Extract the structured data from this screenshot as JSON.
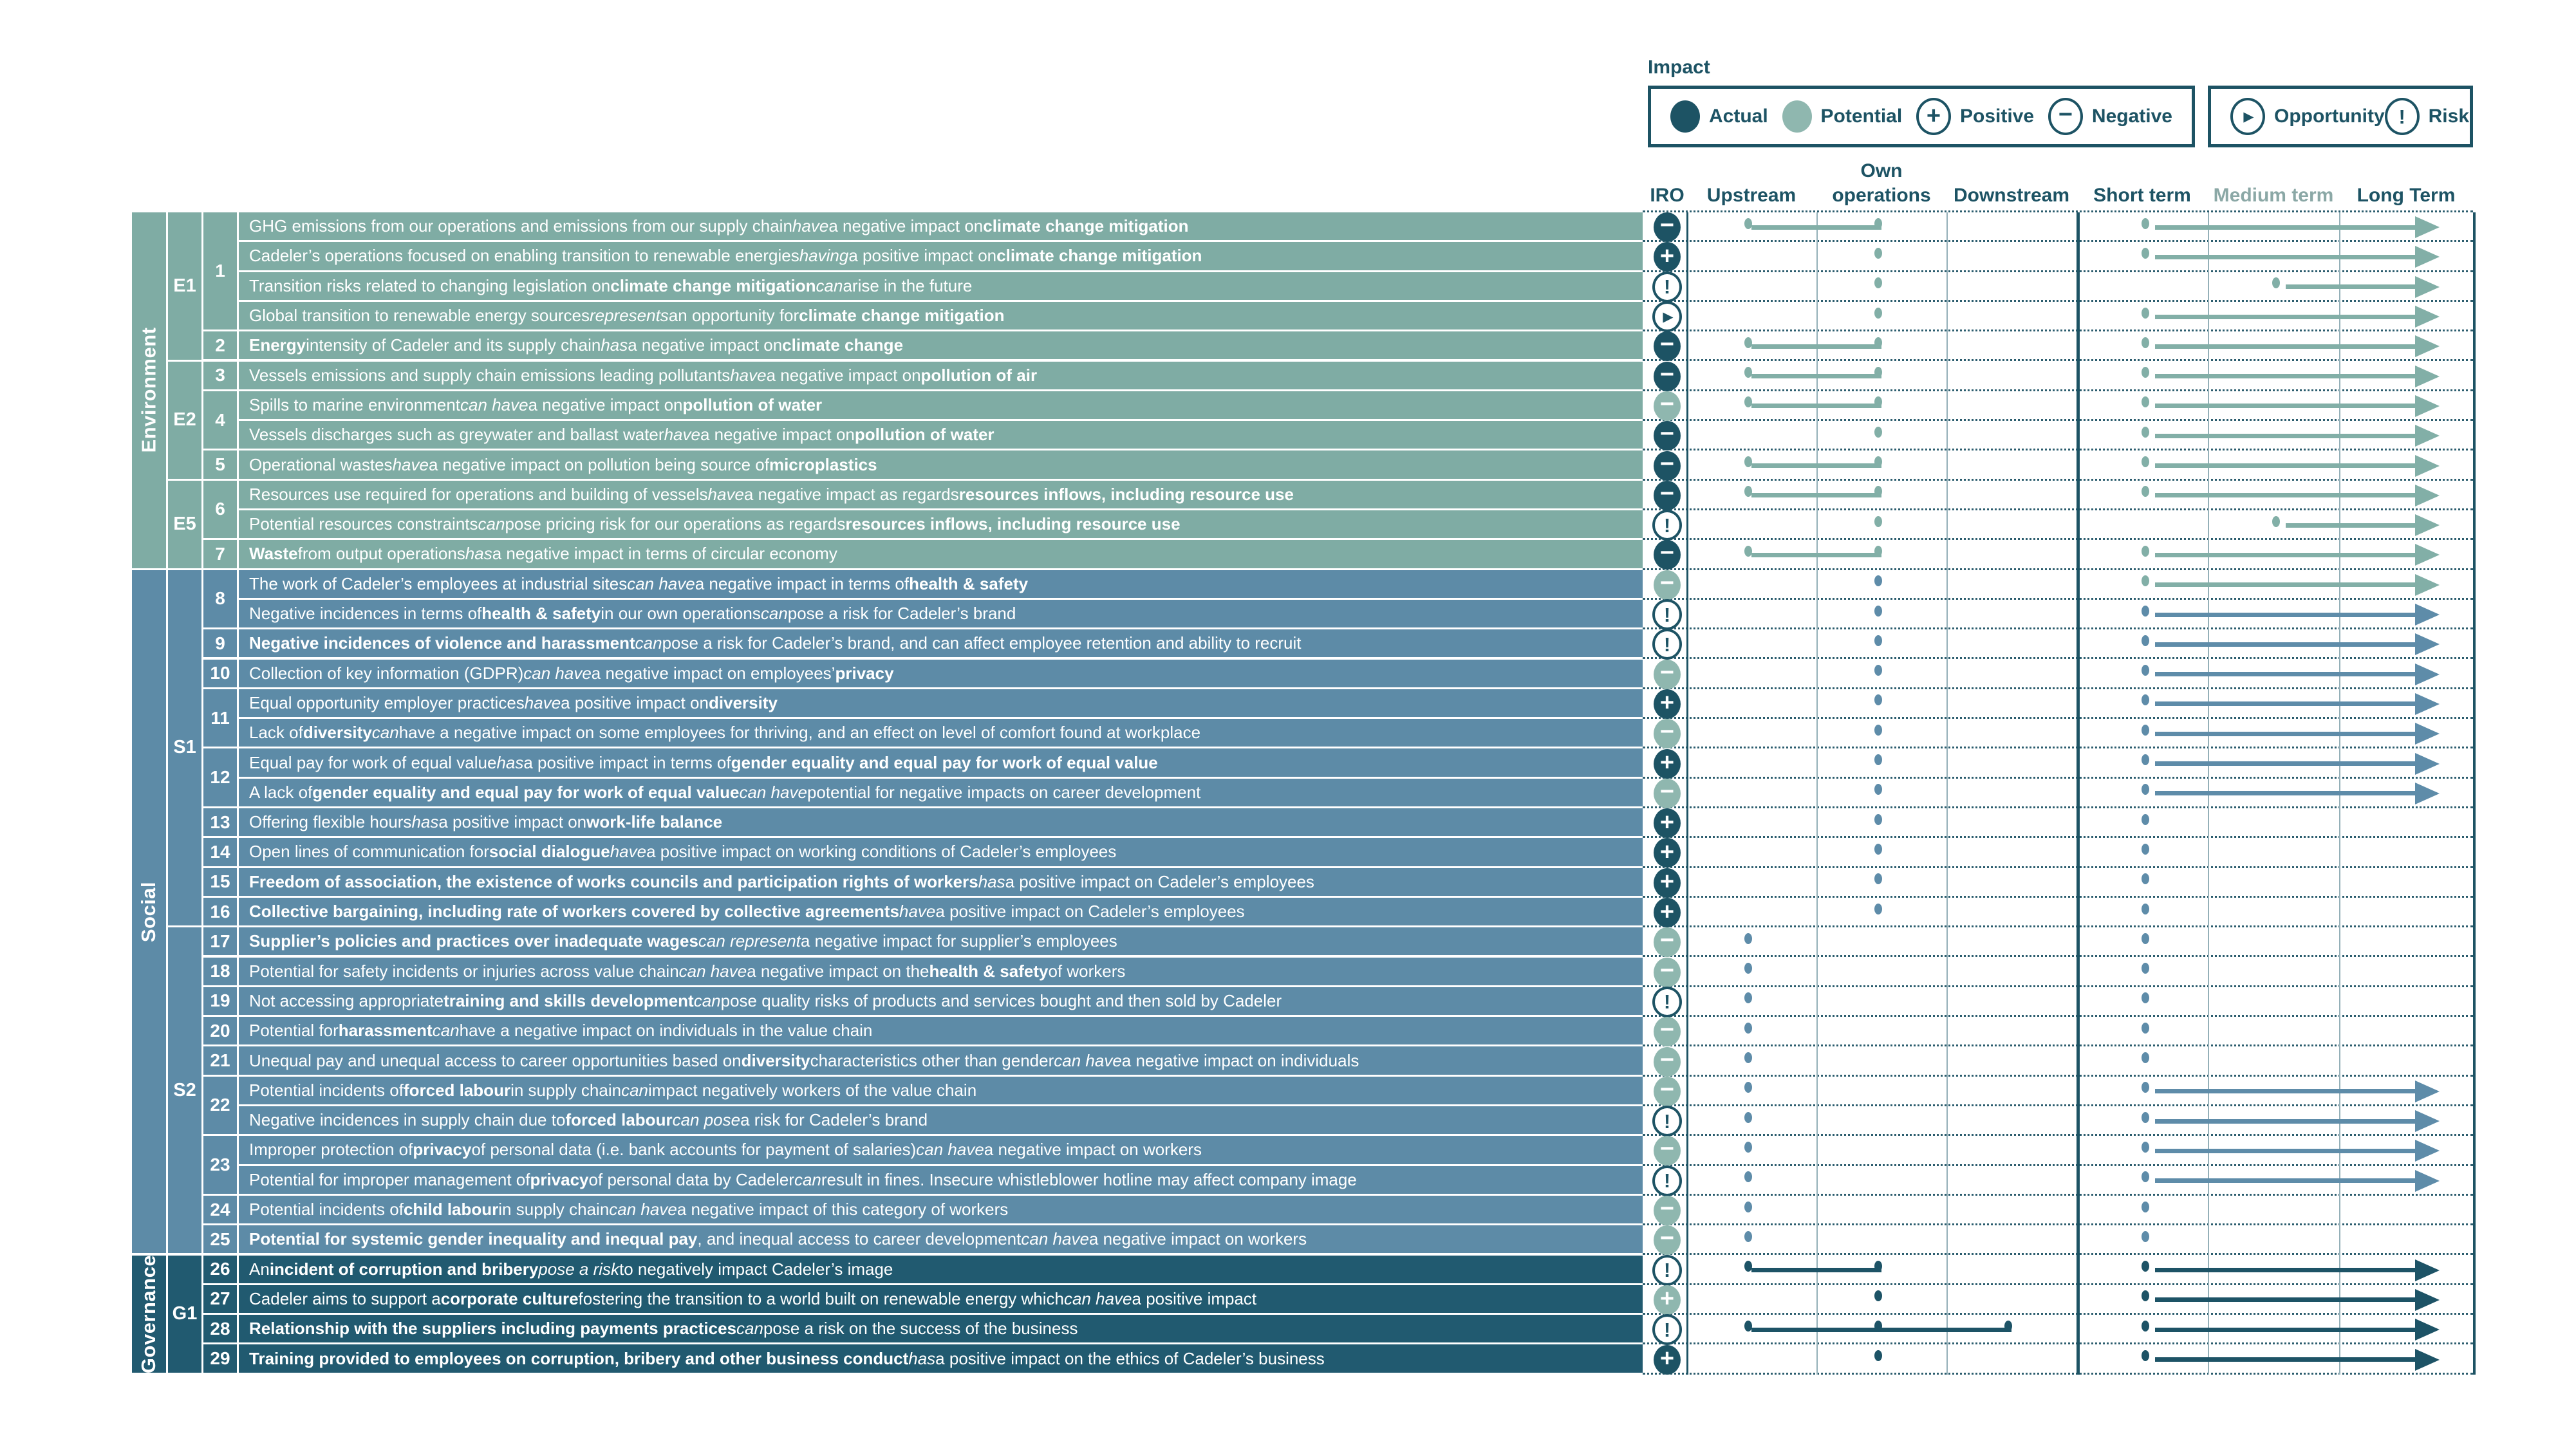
{
  "legend": {
    "title": "Impact",
    "groups": [
      [
        {
          "id": "actual",
          "label": "Actual",
          "icon": "dot-dark"
        },
        {
          "id": "potential",
          "label": "Potential",
          "icon": "dot-light"
        },
        {
          "id": "positive",
          "label": "Positive",
          "icon": "plus-outline"
        },
        {
          "id": "negative",
          "label": "Negative",
          "icon": "minus-outline"
        }
      ],
      [
        {
          "id": "opportunity",
          "label": "Opportunity",
          "icon": "play-outline"
        },
        {
          "id": "risk",
          "label": "Risk",
          "icon": "bang-outline"
        }
      ]
    ]
  },
  "columns": [
    {
      "id": "iro",
      "label": "IRO",
      "muted": false
    },
    {
      "id": "upstream",
      "label": "Upstream",
      "muted": false
    },
    {
      "id": "own",
      "label": "Own operations",
      "muted": false
    },
    {
      "id": "downstream",
      "label": "Downstream",
      "muted": false
    },
    {
      "id": "short",
      "label": "Short term",
      "muted": false
    },
    {
      "id": "medium",
      "label": "Medium term",
      "muted": true
    },
    {
      "id": "long",
      "label": "Long Term",
      "muted": false
    }
  ],
  "palette": {
    "env": {
      "bg": "#7faca4",
      "el": "#82afa7"
    },
    "soc": {
      "bg": "#5d8ba7",
      "el": "#5e8ca9"
    },
    "gov": {
      "bg": "#215a70",
      "el": "#1d5366"
    },
    "dark": "#1d5364",
    "light": "#8fb7af",
    "dotted": "#2c5d6e",
    "thin": "#94b0b8",
    "headerMuted": "#8ba8a6"
  },
  "sections": [
    {
      "id": "environment",
      "label": "Environment",
      "theme": "env",
      "rows": [
        1,
        12
      ]
    },
    {
      "id": "social",
      "label": "Social",
      "theme": "soc",
      "rows": [
        13,
        35
      ]
    },
    {
      "id": "governance",
      "label": "Governance",
      "theme": "gov",
      "rows": [
        36,
        39
      ]
    }
  ],
  "topics": [
    {
      "label": "E1",
      "rows": [
        1,
        5
      ]
    },
    {
      "label": "E2",
      "rows": [
        6,
        9
      ]
    },
    {
      "label": "E5",
      "rows": [
        10,
        12
      ]
    },
    {
      "label": "S1",
      "rows": [
        13,
        24
      ]
    },
    {
      "label": "S2",
      "rows": [
        25,
        35
      ]
    },
    {
      "label": "G1",
      "rows": [
        36,
        39
      ]
    }
  ],
  "numbers": [
    {
      "label": "1",
      "rows": [
        1,
        4
      ]
    },
    {
      "label": "2",
      "rows": [
        5,
        5
      ]
    },
    {
      "label": "3",
      "rows": [
        6,
        6
      ]
    },
    {
      "label": "4",
      "rows": [
        7,
        8
      ]
    },
    {
      "label": "5",
      "rows": [
        9,
        9
      ]
    },
    {
      "label": "6",
      "rows": [
        10,
        11
      ]
    },
    {
      "label": "7",
      "rows": [
        12,
        12
      ]
    },
    {
      "label": "8",
      "rows": [
        13,
        14
      ]
    },
    {
      "label": "9",
      "rows": [
        15,
        15
      ]
    },
    {
      "label": "10",
      "rows": [
        16,
        16
      ]
    },
    {
      "label": "11",
      "rows": [
        17,
        18
      ]
    },
    {
      "label": "12",
      "rows": [
        19,
        20
      ]
    },
    {
      "label": "13",
      "rows": [
        21,
        21
      ]
    },
    {
      "label": "14",
      "rows": [
        22,
        22
      ]
    },
    {
      "label": "15",
      "rows": [
        23,
        23
      ]
    },
    {
      "label": "16",
      "rows": [
        24,
        24
      ]
    },
    {
      "label": "17",
      "rows": [
        25,
        25
      ]
    },
    {
      "label": "18",
      "rows": [
        26,
        26
      ]
    },
    {
      "label": "19",
      "rows": [
        27,
        27
      ]
    },
    {
      "label": "20",
      "rows": [
        28,
        28
      ]
    },
    {
      "label": "21",
      "rows": [
        29,
        29
      ]
    },
    {
      "label": "22",
      "rows": [
        30,
        31
      ]
    },
    {
      "label": "23",
      "rows": [
        32,
        33
      ]
    },
    {
      "label": "24",
      "rows": [
        34,
        34
      ]
    },
    {
      "label": "25",
      "rows": [
        35,
        35
      ]
    },
    {
      "label": "26",
      "rows": [
        36,
        36
      ]
    },
    {
      "label": "27",
      "rows": [
        37,
        37
      ]
    },
    {
      "label": "28",
      "rows": [
        38,
        38
      ]
    },
    {
      "label": "29",
      "rows": [
        39,
        39
      ]
    }
  ],
  "rows": [
    {
      "n": 1,
      "theme": "env",
      "text": "GHG emissions from our operations and emissions from our supply chain *have* a negative impact on **climate change mitigation**",
      "iro": "neg-actual",
      "chain": [
        "up",
        "own"
      ],
      "time": "sl"
    },
    {
      "n": 2,
      "theme": "env",
      "text": "Cadeler’s operations focused on enabling transition to renewable energies *having* a positive impact on **climate change mitigation**",
      "iro": "pos-actual",
      "chain": [
        "own"
      ],
      "time": "sl"
    },
    {
      "n": 3,
      "theme": "env",
      "text": "Transition risks related to changing legislation on **climate change mitigation** *can* arise in the future",
      "iro": "risk",
      "chain": [
        "own"
      ],
      "time": "ml"
    },
    {
      "n": 4,
      "theme": "env",
      "text": "Global transition to renewable energy sources *represents* an opportunity for **climate change mitigation**",
      "iro": "opportunity",
      "chain": [
        "own"
      ],
      "time": "sl"
    },
    {
      "n": 5,
      "theme": "env",
      "text": "**Energy** intensity of Cadeler and its supply chain *has* a negative impact on **climate change**",
      "iro": "neg-actual",
      "chain": [
        "up",
        "own"
      ],
      "time": "sl"
    },
    {
      "n": 6,
      "theme": "env",
      "text": "Vessels emissions and supply chain emissions leading pollutants *have* a negative impact on **pollution of air**",
      "iro": "neg-actual",
      "chain": [
        "up",
        "own"
      ],
      "time": "sl"
    },
    {
      "n": 7,
      "theme": "env",
      "text": "Spills to marine environment *can have* a negative impact on **pollution of water**",
      "iro": "neg-potential",
      "chain": [
        "up",
        "own"
      ],
      "time": "sl"
    },
    {
      "n": 8,
      "theme": "env",
      "text": "Vessels discharges such as greywater and ballast water *have* a negative impact on **pollution of water**",
      "iro": "neg-actual",
      "chain": [
        "own"
      ],
      "time": "sl"
    },
    {
      "n": 9,
      "theme": "env",
      "text": "Operational wastes *have* a negative impact on pollution being source of **microplastics**",
      "iro": "neg-actual",
      "chain": [
        "up",
        "own"
      ],
      "time": "sl"
    },
    {
      "n": 10,
      "theme": "env",
      "text": "Resources use required for operations and building of vessels *have* a negative impact as regards **resources inflows, including resource use**",
      "iro": "neg-actual",
      "chain": [
        "up",
        "own"
      ],
      "time": "sl"
    },
    {
      "n": 11,
      "theme": "env",
      "text": "Potential resources constraints *can* pose pricing risk for our operations as regards **resources inflows, including resource use**",
      "iro": "risk",
      "chain": [
        "own"
      ],
      "time": "ml"
    },
    {
      "n": 12,
      "theme": "env",
      "text": "**Waste** from output operations *has* a negative impact in terms of circular economy",
      "iro": "neg-actual",
      "chain": [
        "up",
        "own"
      ],
      "time": "sl"
    },
    {
      "n": 13,
      "theme": "soc",
      "text": "The work of Cadeler’s employees at industrial sites *can have* a negative impact in terms of **health & safety**",
      "iro": "neg-potential",
      "chain": [
        "own"
      ],
      "time": "sl",
      "arrowTheme": "env"
    },
    {
      "n": 14,
      "theme": "soc",
      "text": "Negative incidences in terms of **health & safety** in our own operations *can* pose a risk for Cadeler’s brand",
      "iro": "risk",
      "chain": [
        "own"
      ],
      "time": "sl"
    },
    {
      "n": 15,
      "theme": "soc",
      "text": "**Negative incidences of violence and harassment** *can* pose a risk for Cadeler’s brand, and can affect employee retention and ability to recruit",
      "iro": "risk",
      "chain": [
        "own"
      ],
      "time": "sl"
    },
    {
      "n": 16,
      "theme": "soc",
      "text": "Collection of key information (GDPR) *can have* a negative impact on employees’ **privacy**",
      "iro": "neg-potential",
      "chain": [
        "own"
      ],
      "time": "sl"
    },
    {
      "n": 17,
      "theme": "soc",
      "text": "Equal opportunity employer practices *have* a positive impact on **diversity**",
      "iro": "pos-actual",
      "chain": [
        "own"
      ],
      "time": "sl"
    },
    {
      "n": 18,
      "theme": "soc",
      "text": "Lack of **diversity** *can* have a negative impact on some employees for thriving, and an effect on level of comfort found at workplace",
      "iro": "neg-potential",
      "chain": [
        "own"
      ],
      "time": "sl"
    },
    {
      "n": 19,
      "theme": "soc",
      "text": "Equal pay for work of equal value *has* a positive impact in terms of **gender equality and equal pay for work of equal value**",
      "iro": "pos-actual",
      "chain": [
        "own"
      ],
      "time": "sl"
    },
    {
      "n": 20,
      "theme": "soc",
      "text": "A lack of **gender equality and equal pay for work of equal value** *can have* potential for negative impacts on career development",
      "iro": "neg-potential",
      "chain": [
        "own"
      ],
      "time": "sl"
    },
    {
      "n": 21,
      "theme": "soc",
      "text": "Offering flexible hours *has* a positive impact on **work-life balance**",
      "iro": "pos-actual",
      "chain": [
        "own"
      ],
      "time": "s"
    },
    {
      "n": 22,
      "theme": "soc",
      "text": "Open lines of communication for **social dialogue** *have* a positive impact on working conditions of Cadeler’s employees",
      "iro": "pos-actual",
      "chain": [
        "own"
      ],
      "time": "s"
    },
    {
      "n": 23,
      "theme": "soc",
      "text": "**Freedom of association, the existence of works councils and participation rights of workers** *has* a positive impact on Cadeler’s employees",
      "iro": "pos-actual",
      "chain": [
        "own"
      ],
      "time": "s"
    },
    {
      "n": 24,
      "theme": "soc",
      "text": "**Collective bargaining, including rate of workers covered by collective agreements** *have* a positive impact on Cadeler’s employees",
      "iro": "pos-actual",
      "chain": [
        "own"
      ],
      "time": "s"
    },
    {
      "n": 25,
      "theme": "soc",
      "text": "**Supplier’s policies and practices over inadequate wages** *can represent* a negative impact for supplier’s employees",
      "iro": "neg-potential",
      "chain": [
        "up"
      ],
      "time": "s"
    },
    {
      "n": 26,
      "theme": "soc",
      "text": "Potential for safety incidents or injuries across value chain *can have* a negative impact on the **health & safety** of workers",
      "iro": "neg-potential",
      "chain": [
        "up"
      ],
      "time": "s"
    },
    {
      "n": 27,
      "theme": "soc",
      "text": "Not accessing appropriate **training and skills development** *can* pose quality risks of products and services bought and then sold by Cadeler",
      "iro": "risk",
      "chain": [
        "up"
      ],
      "time": "s"
    },
    {
      "n": 28,
      "theme": "soc",
      "text": "Potential for **harassment** *can* have a negative impact on individuals in the value chain",
      "iro": "neg-potential",
      "chain": [
        "up"
      ],
      "time": "s"
    },
    {
      "n": 29,
      "theme": "soc",
      "text": "Unequal pay and unequal access to career opportunities based on **diversity** characteristics other than gender *can have* a negative impact on individuals",
      "iro": "neg-potential",
      "chain": [
        "up"
      ],
      "time": "s"
    },
    {
      "n": 30,
      "theme": "soc",
      "text": "Potential incidents of **forced labour** in supply chain *can* impact negatively workers of the value chain",
      "iro": "neg-potential",
      "chain": [
        "up"
      ],
      "time": "sl"
    },
    {
      "n": 31,
      "theme": "soc",
      "text": "Negative incidences in supply chain due to **forced labour** *can pose* a risk for Cadeler’s brand",
      "iro": "risk",
      "chain": [
        "up"
      ],
      "time": "sl"
    },
    {
      "n": 32,
      "theme": "soc",
      "text": "Improper protection of **privacy** of personal data (i.e. bank accounts for payment of salaries) *can have* a negative impact on workers",
      "iro": "neg-potential",
      "chain": [
        "up"
      ],
      "time": "sl"
    },
    {
      "n": 33,
      "theme": "soc",
      "text": "Potential for improper management of **privacy** of personal data by Cadeler *can* result in fines. Insecure whistleblower hotline may affect company image",
      "iro": "risk",
      "chain": [
        "up"
      ],
      "time": "sl"
    },
    {
      "n": 34,
      "theme": "soc",
      "text": "Potential incidents of **child labour** in supply chain *can have* a negative impact of this category of workers",
      "iro": "neg-potential",
      "chain": [
        "up"
      ],
      "time": "s"
    },
    {
      "n": 35,
      "theme": "soc",
      "text": "**Potential for systemic gender inequality and inequal pay**, and inequal access to career development *can have* a negative impact on workers",
      "iro": "neg-potential",
      "chain": [
        "up"
      ],
      "time": "s"
    },
    {
      "n": 36,
      "theme": "gov",
      "text": "An **incident of corruption and bribery** *pose a risk* to negatively impact Cadeler’s image",
      "iro": "risk",
      "chain": [
        "up",
        "own"
      ],
      "time": "sl"
    },
    {
      "n": 37,
      "theme": "gov",
      "text": "Cadeler aims to support a **corporate culture** fostering the transition to a world built on renewable energy which *can have* a positive impact",
      "iro": "pos-potential",
      "chain": [
        "own"
      ],
      "time": "sl"
    },
    {
      "n": 38,
      "theme": "gov",
      "text": "**Relationship with the suppliers including payments practices** *can* pose a risk on the success of the business",
      "iro": "risk",
      "chain": [
        "up",
        "own",
        "down"
      ],
      "time": "sl"
    },
    {
      "n": 39,
      "theme": "gov",
      "text": "**Training provided to employees on corruption, bribery and other business conduct** *has* a positive impact on the ethics of Cadeler’s business",
      "iro": "pos-actual",
      "chain": [
        "own"
      ],
      "time": "sl"
    }
  ]
}
